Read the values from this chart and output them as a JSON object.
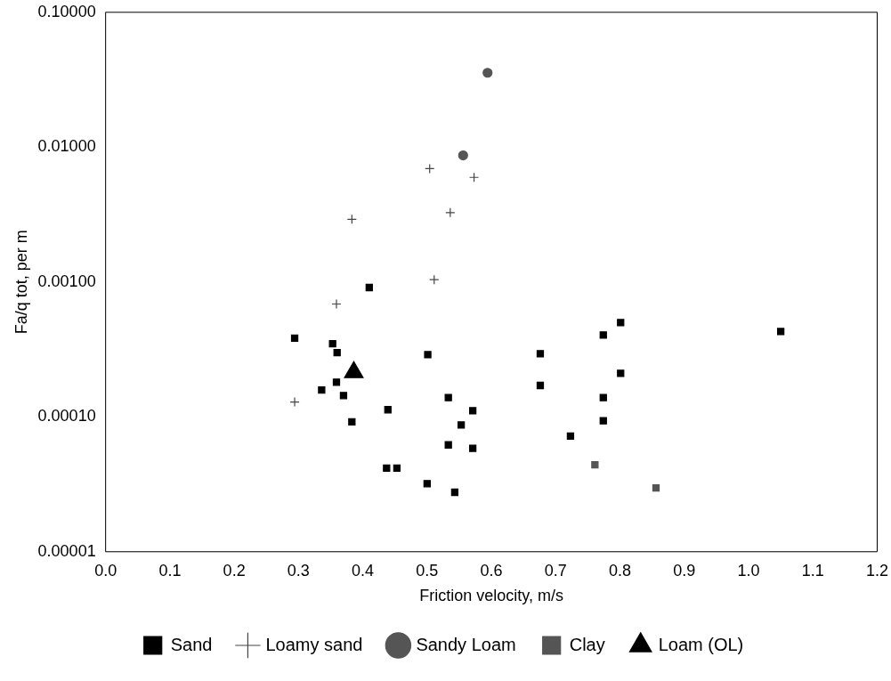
{
  "chart_data": {
    "type": "scatter",
    "xlabel": "Friction velocity, m/s",
    "ylabel": "Fa/q tot, per m",
    "log": "y",
    "grid": false,
    "legend": "bottom",
    "xlim": [
      0,
      1.2
    ],
    "xticks": [
      {
        "value": 0,
        "label": "0.0"
      },
      0.1,
      0.2,
      0.3,
      0.4,
      0.5,
      0.6,
      0.7,
      0.8,
      0.9,
      {
        "value": 1,
        "label": "1.0"
      },
      1.1,
      1.2
    ],
    "ylim": [
      1e-05,
      0.1
    ],
    "yticks": [
      {
        "value": 1e-05,
        "label": "0.00001"
      },
      {
        "value": 0.0001,
        "label": "0.00010"
      },
      {
        "value": 0.001,
        "label": "0.00100"
      },
      {
        "value": 0.01,
        "label": "0.01000"
      },
      {
        "value": 0.1,
        "label": "0.10000"
      }
    ],
    "series": [
      {
        "name": "Sand",
        "color": "#000000",
        "marker": "square",
        "x": [
          0.294,
          0.353,
          0.36,
          0.41,
          0.501,
          0.336,
          0.359,
          0.37,
          0.383,
          0.439,
          0.437,
          0.453,
          0.5,
          0.543,
          0.533,
          0.553,
          0.571,
          0.533,
          0.571,
          0.676,
          0.676,
          0.723,
          0.774,
          0.801,
          0.801,
          0.774,
          0.774,
          1.05
        ],
        "values": [
          0.000384,
          0.000349,
          0.0003,
          0.00091,
          0.000289,
          0.000158,
          0.000181,
          0.000144,
          9.2e-05,
          0.000113,
          4.17e-05,
          4.17e-05,
          3.2e-05,
          2.76e-05,
          0.000139,
          8.7e-05,
          0.000111,
          6.2e-05,
          5.85e-05,
          0.000294,
          0.000171,
          7.2e-05,
          0.000405,
          0.0005,
          0.00021,
          0.000139,
          9.35e-05,
          0.000429
        ]
      },
      {
        "name": "Loamy sand",
        "color": "#444444",
        "marker": "cross",
        "x": [
          0.294,
          0.359,
          0.383,
          0.504,
          0.511,
          0.536,
          0.573
        ],
        "values": [
          0.000129,
          0.000687,
          0.00292,
          0.00693,
          0.00104,
          0.00327,
          0.00597
        ]
      },
      {
        "name": "Sandy Loam",
        "color": "#555555",
        "marker": "circle",
        "x": [
          0.594,
          0.556
        ],
        "values": [
          0.0356,
          0.00869
        ]
      },
      {
        "name": "Clay",
        "color": "#555555",
        "marker": "square",
        "x": [
          0.761,
          0.856
        ],
        "values": [
          4.41e-05,
          2.97e-05
        ]
      },
      {
        "name": "Loam (OL)",
        "color": "#000000",
        "marker": "triangle",
        "x": [
          0.386
        ],
        "values": [
          0.000214
        ]
      }
    ]
  }
}
